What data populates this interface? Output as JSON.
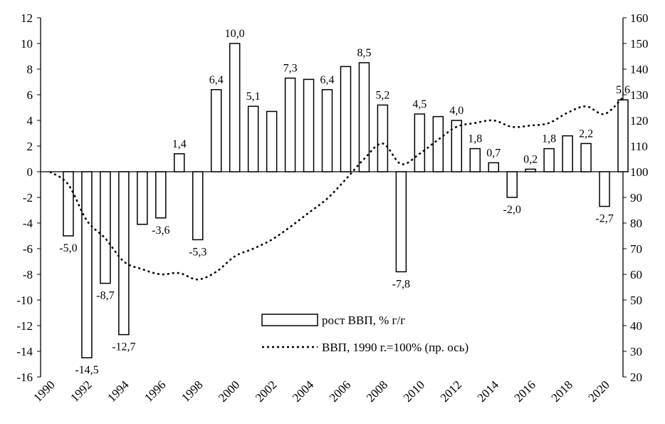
{
  "chart_data": {
    "type": "bar",
    "title": "",
    "xlabel": "",
    "ylabel": "",
    "y2label": "",
    "categories": [
      "1990",
      "1991",
      "1992",
      "1993",
      "1994",
      "1995",
      "1996",
      "1997",
      "1998",
      "1999",
      "2000",
      "2001",
      "2002",
      "2003",
      "2004",
      "2005",
      "2006",
      "2007",
      "2008",
      "2009",
      "2010",
      "2011",
      "2012",
      "2013",
      "2014",
      "2015",
      "2016",
      "2017",
      "2018",
      "2019",
      "2020",
      "2021"
    ],
    "x_tick_labels": [
      "1990",
      "1992",
      "1994",
      "1996",
      "1998",
      "2000",
      "2002",
      "2004",
      "2006",
      "2008",
      "2010",
      "2012",
      "2014",
      "2016",
      "2018",
      "2020"
    ],
    "ylim": [
      -16,
      12
    ],
    "y_ticks": [
      12,
      10,
      8,
      6,
      4,
      2,
      0,
      -2,
      -4,
      -6,
      -8,
      -10,
      -12,
      -14,
      -16
    ],
    "y2lim": [
      20,
      160
    ],
    "y2_ticks": [
      160,
      150,
      140,
      130,
      120,
      110,
      100,
      90,
      80,
      70,
      60,
      50,
      40,
      30,
      20
    ],
    "legend_position": "center-bottom",
    "grid": false,
    "series": [
      {
        "name": "рост ВВП, % г/г",
        "type": "bar",
        "axis": "left",
        "values": [
          null,
          -5.0,
          -14.5,
          -8.7,
          -12.7,
          -4.1,
          -3.6,
          1.4,
          -5.3,
          6.4,
          10.0,
          5.1,
          4.7,
          7.3,
          7.2,
          6.4,
          8.2,
          8.5,
          5.2,
          -7.8,
          4.5,
          4.3,
          4.0,
          1.8,
          0.7,
          -2.0,
          0.2,
          1.8,
          2.8,
          2.2,
          -2.7,
          5.6
        ],
        "labels": [
          "",
          "-5,0",
          "-14,5",
          "-8,7",
          "-12,7",
          "",
          "-3,6",
          "1,4",
          "-5,3",
          "6,4",
          "10,0",
          "5,1",
          "",
          "7,3",
          "",
          "6,4",
          "",
          "8,5",
          "5,2",
          "-7,8",
          "4,5",
          "",
          "4,0",
          "1,8",
          "0,7",
          "-2,0",
          "0,2",
          "1,8",
          "",
          "2,2",
          "-2,7",
          "5,6"
        ]
      },
      {
        "name": "ВВП, 1990 г.=100% (пр. ось)",
        "type": "line",
        "style": "dotted",
        "axis": "right",
        "values": [
          100,
          95,
          81,
          74,
          65,
          62,
          60,
          60.5,
          58,
          61,
          67,
          70,
          73.5,
          78.5,
          84,
          89.5,
          97,
          105,
          111,
          103,
          107,
          112.5,
          117.5,
          119,
          120,
          117.5,
          118,
          119,
          123,
          125.5,
          122.5,
          129
        ]
      }
    ],
    "colors": {
      "bar_fill": "#ffffff",
      "bar_stroke": "#000000",
      "line": "#000000",
      "axis": "#000000"
    }
  }
}
